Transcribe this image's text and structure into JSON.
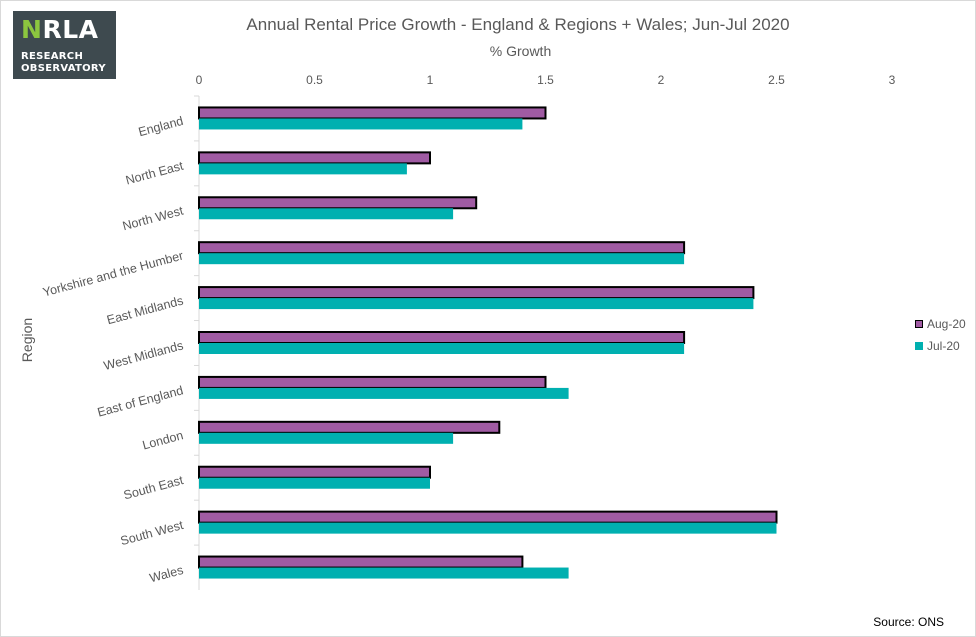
{
  "logo": {
    "main_prefix": "N",
    "main_rest": "RLA",
    "line1": "RESEARCH",
    "line2": "OBSERVATORY",
    "colors": {
      "background": "#3e4a4f",
      "accent": "#8cc63f",
      "text": "#ffffff"
    }
  },
  "source": "Source: ONS",
  "chart_data": {
    "type": "bar",
    "orientation": "horizontal",
    "title": "Annual Rental Price Growth - England & Regions + Wales; Jun-Jul 2020",
    "xlabel": "% Growth",
    "ylabel": "Region",
    "xlim": [
      0,
      3
    ],
    "x_ticks": [
      "0",
      "0.5",
      "1",
      "1.5",
      "2",
      "2.5",
      "3"
    ],
    "x_axis_position": "top",
    "grid": false,
    "legend_position": "right",
    "categories": [
      "England",
      "North East",
      "North West",
      "Yorkshire and the Humber",
      "East Midlands",
      "West Midlands",
      "East of England",
      "London",
      "South East",
      "South West",
      "Wales"
    ],
    "series": [
      {
        "name": "Aug-20",
        "color": "#a05ba3",
        "outline": "#000000",
        "values": [
          1.5,
          1.0,
          1.2,
          2.1,
          2.4,
          2.1,
          1.5,
          1.3,
          1.0,
          2.5,
          1.4
        ]
      },
      {
        "name": "Jul-20",
        "color": "#00b0b0",
        "outline": "none",
        "values": [
          1.4,
          0.9,
          1.1,
          2.1,
          2.4,
          2.1,
          1.6,
          1.1,
          1.0,
          2.5,
          1.6
        ]
      }
    ]
  }
}
